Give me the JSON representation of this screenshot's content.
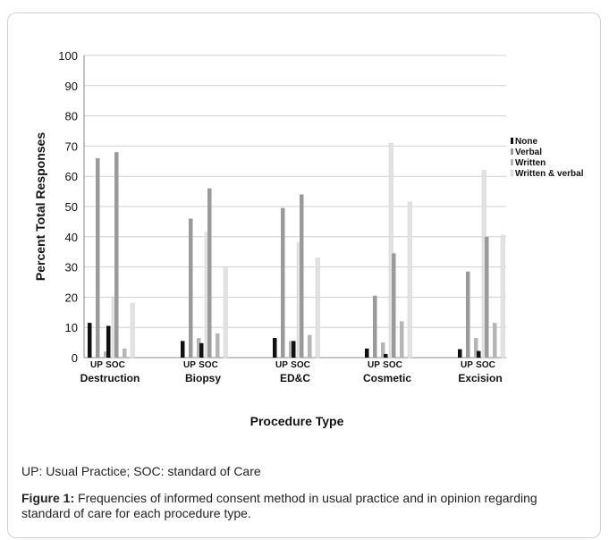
{
  "chart_data": {
    "type": "bar",
    "title": "",
    "xlabel": "Procedure Type",
    "ylabel": "Percent Total Responses",
    "ylim": [
      0,
      100
    ],
    "yticks": [
      "0",
      "10",
      "20",
      "30",
      "40",
      "50",
      "60",
      "70",
      "80",
      "90",
      "100"
    ],
    "grid": true,
    "legend_position": "right",
    "groups": [
      "Destruction",
      "Biopsy",
      "ED&C",
      "Cosmetic",
      "Excision"
    ],
    "subgroups": [
      "UP",
      "SOC"
    ],
    "series": [
      {
        "name": "None",
        "color": "#111111",
        "values": [
          [
            11.5,
            10.5
          ],
          [
            5.5,
            4.8
          ],
          [
            6.5,
            5.5
          ],
          [
            3.0,
            1.2
          ],
          [
            2.8,
            2.2
          ]
        ]
      },
      {
        "name": "Verbal",
        "color": "#9a9a9a",
        "values": [
          [
            66,
            68
          ],
          [
            46,
            56
          ],
          [
            49.5,
            54
          ],
          [
            20.5,
            34.5
          ],
          [
            28.5,
            40
          ]
        ]
      },
      {
        "name": "Written",
        "color": "#b5b5b5",
        "values": [
          [
            2.0,
            3.0
          ],
          [
            6.5,
            8.0
          ],
          [
            5.5,
            7.5
          ],
          [
            5.0,
            12.0
          ],
          [
            6.5,
            11.5
          ]
        ]
      },
      {
        "name": "Written & verbal",
        "color": "#e2e2e2",
        "values": [
          [
            20,
            18
          ],
          [
            41.5,
            30
          ],
          [
            38,
            33
          ],
          [
            71,
            51.5
          ],
          [
            62,
            40.5
          ]
        ]
      }
    ]
  },
  "note": "UP: Usual Practice; SOC: standard of Care",
  "caption": {
    "label": "Figure 1:",
    "text": " Frequencies of informed consent method in usual practice and in opinion regarding standard of care for each procedure type."
  }
}
